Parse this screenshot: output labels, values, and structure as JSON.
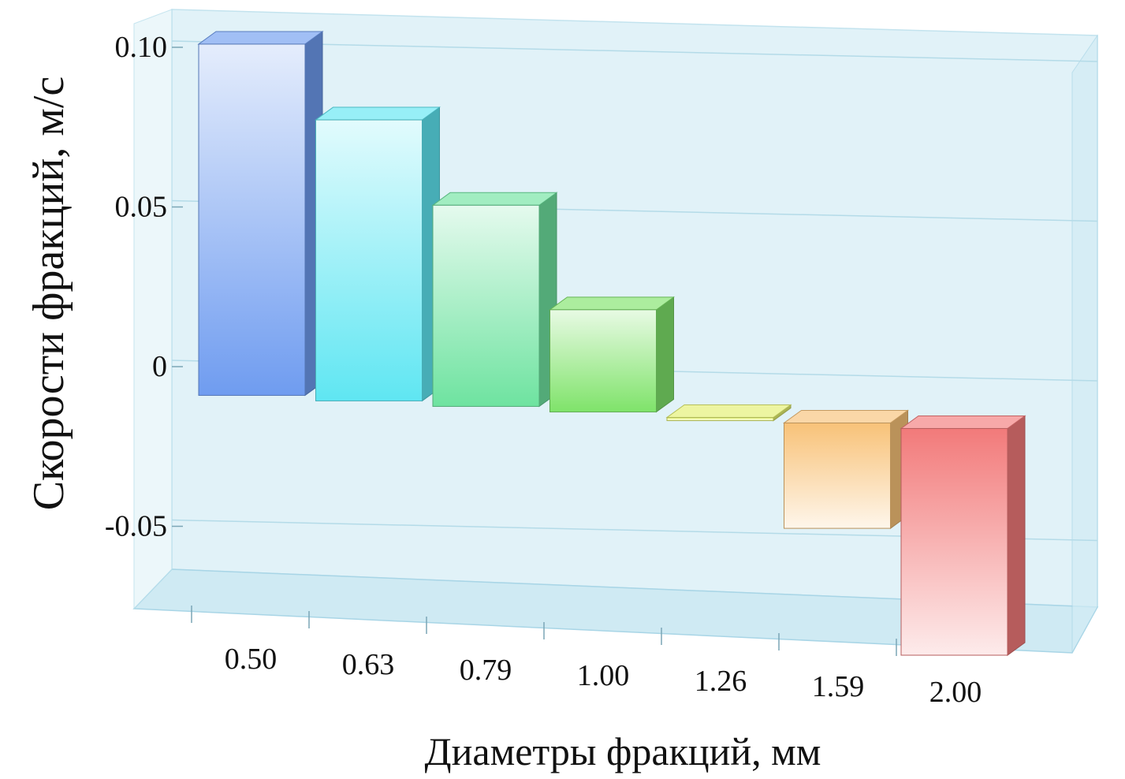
{
  "chart_data": {
    "type": "bar",
    "style": "3d",
    "title": "",
    "xlabel": "Диаметры фракций, мм",
    "ylabel": "Скорости фракций, м/с",
    "categories": [
      "0.50",
      "0.63",
      "0.79",
      "1.00",
      "1.26",
      "1.59",
      "2.00"
    ],
    "values": [
      0.101,
      0.079,
      0.054,
      0.023,
      -0.01,
      -0.042,
      -0.08
    ],
    "ylim": [
      -0.07,
      0.11
    ],
    "yticks": [
      {
        "value": 0.1,
        "label": "0.10"
      },
      {
        "value": 0.05,
        "label": "0.05"
      },
      {
        "value": 0,
        "label": "0"
      },
      {
        "value": -0.05,
        "label": "-0.05"
      }
    ],
    "colors": [
      "#6f9cf0",
      "#5fe6f2",
      "#6ee3a0",
      "#7fe36a",
      "#e3f06e",
      "#f8c278",
      "#f27a7a"
    ],
    "grid": true,
    "legend": "none"
  }
}
